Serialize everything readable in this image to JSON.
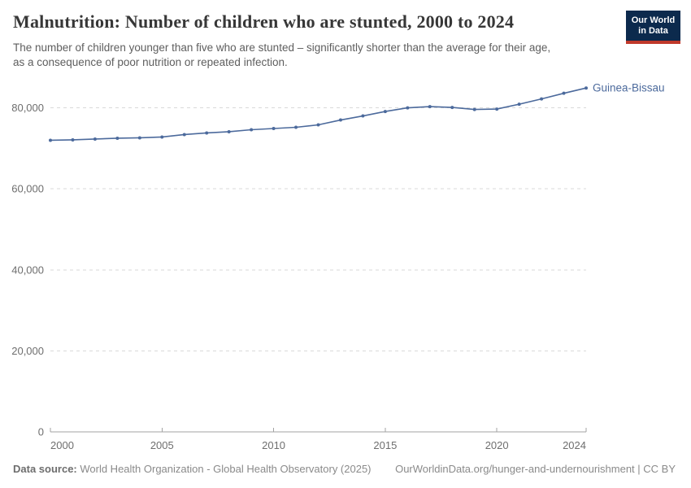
{
  "header": {
    "title": "Malnutrition: Number of children who are stunted, 2000 to 2024",
    "subtitle": "The number of children younger than five who are stunted – significantly shorter than the average for their age,\nas a consequence of poor nutrition or repeated infection.",
    "logo": {
      "line1": "Our World",
      "line2": "in Data"
    }
  },
  "chart_data": {
    "type": "line",
    "title": "Malnutrition: Number of children who are stunted, 2000 to 2024",
    "x": [
      2000,
      2001,
      2002,
      2003,
      2004,
      2005,
      2006,
      2007,
      2008,
      2009,
      2010,
      2011,
      2012,
      2013,
      2014,
      2015,
      2016,
      2017,
      2018,
      2019,
      2020,
      2021,
      2022,
      2023,
      2024
    ],
    "series": [
      {
        "name": "Guinea-Bissau",
        "color": "#4c6a9c",
        "values": [
          72000,
          72100,
          72300,
          72500,
          72600,
          72800,
          73400,
          73800,
          74100,
          74600,
          74900,
          75200,
          75800,
          77000,
          78000,
          79100,
          80000,
          80300,
          80100,
          79600,
          79700,
          80900,
          82200,
          83600,
          84900
        ]
      }
    ],
    "xlabel": "",
    "ylabel": "",
    "ylim": [
      0,
      80000
    ],
    "yticks": [
      0,
      20000,
      40000,
      60000,
      80000
    ],
    "ytick_labels": [
      "0",
      "20,000",
      "40,000",
      "60,000",
      "80,000"
    ],
    "xticks": [
      2000,
      2005,
      2010,
      2015,
      2020,
      2024
    ],
    "xtick_labels": [
      "2000",
      "2005",
      "2010",
      "2015",
      "2020",
      "2024"
    ],
    "grid": "horizontal-dashed",
    "legend": "entity-label-right-of-line"
  },
  "footer": {
    "data_source_label": "Data source:",
    "data_source_value": " World Health Organization - Global Health Observatory (2025)",
    "attribution": "OurWorldinData.org/hunger-and-undernourishment | CC BY"
  },
  "colors": {
    "line": "#4c6a9c",
    "grid": "#d9d9d9",
    "axis": "#a3a3a3",
    "tick_label": "#6e6e6e",
    "logo_bg": "#0c2a4d",
    "logo_stripe": "#c0392b"
  }
}
